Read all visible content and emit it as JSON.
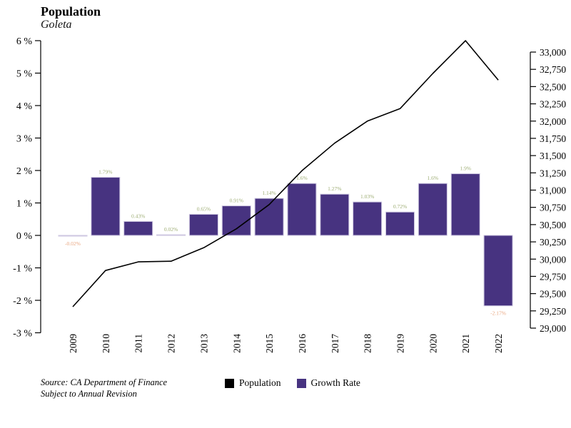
{
  "header": {
    "title": "Population",
    "subtitle": "Goleta"
  },
  "source": {
    "line1": "Source: CA Department of Finance",
    "line2": "Subject to Annual Revision"
  },
  "legend": [
    {
      "label": "Population",
      "color": "#000000"
    },
    {
      "label": "Growth Rate",
      "color": "#473380"
    }
  ],
  "colors": {
    "bar_fill": "#473380",
    "bar_edge": "#cdc6e0",
    "line": "#000000",
    "axis": "#000000",
    "label_positive": "#9fae76",
    "label_negative": "#e9a57f"
  },
  "chart_data": {
    "type": "bar+line combo",
    "title": "Population",
    "subtitle": "Goleta",
    "categories": [
      "2009",
      "2010",
      "2011",
      "2012",
      "2013",
      "2014",
      "2015",
      "2016",
      "2017",
      "2018",
      "2019",
      "2020",
      "2021",
      "2022"
    ],
    "series": [
      {
        "name": "Population",
        "type": "line",
        "axis": "right",
        "color": "#000000",
        "values": [
          29310,
          29835,
          29960,
          29970,
          30165,
          30440,
          30790,
          31280,
          31680,
          32000,
          32180,
          32690,
          33165,
          32595
        ]
      },
      {
        "name": "Growth Rate",
        "type": "bar",
        "axis": "left",
        "color": "#473380",
        "values": [
          -0.02,
          1.79,
          0.43,
          0.02,
          0.65,
          0.91,
          1.14,
          1.6,
          1.27,
          1.03,
          0.72,
          1.6,
          1.9,
          -2.17
        ],
        "labels": [
          "-0.02%",
          "1.79%",
          "0.43%",
          "0.02%",
          "0.65%",
          "0.91%",
          "1.14%",
          "1.6%",
          "1.27%",
          "1.03%",
          "0.72%",
          "1.6%",
          "1.9%",
          "-2.17%"
        ]
      }
    ],
    "left_axis": {
      "title": "",
      "range": [
        -3,
        6
      ],
      "tick_step": 1,
      "ticks": [
        "6 %",
        "5 %",
        "4 %",
        "3 %",
        "2 %",
        "1 %",
        "0 %",
        "-1 %",
        "-2 %",
        "-3 %"
      ]
    },
    "right_axis": {
      "title": "",
      "range": [
        29000,
        33000
      ],
      "tick_step": 250,
      "ticks": [
        "33,000",
        "32,750",
        "32,500",
        "32,250",
        "32,000",
        "31,750",
        "31,500",
        "31,250",
        "31,000",
        "30,750",
        "30,500",
        "30,250",
        "30,000",
        "29,750",
        "29,500",
        "29,250",
        "29,000"
      ]
    },
    "grid": false,
    "legend_position": "bottom"
  }
}
